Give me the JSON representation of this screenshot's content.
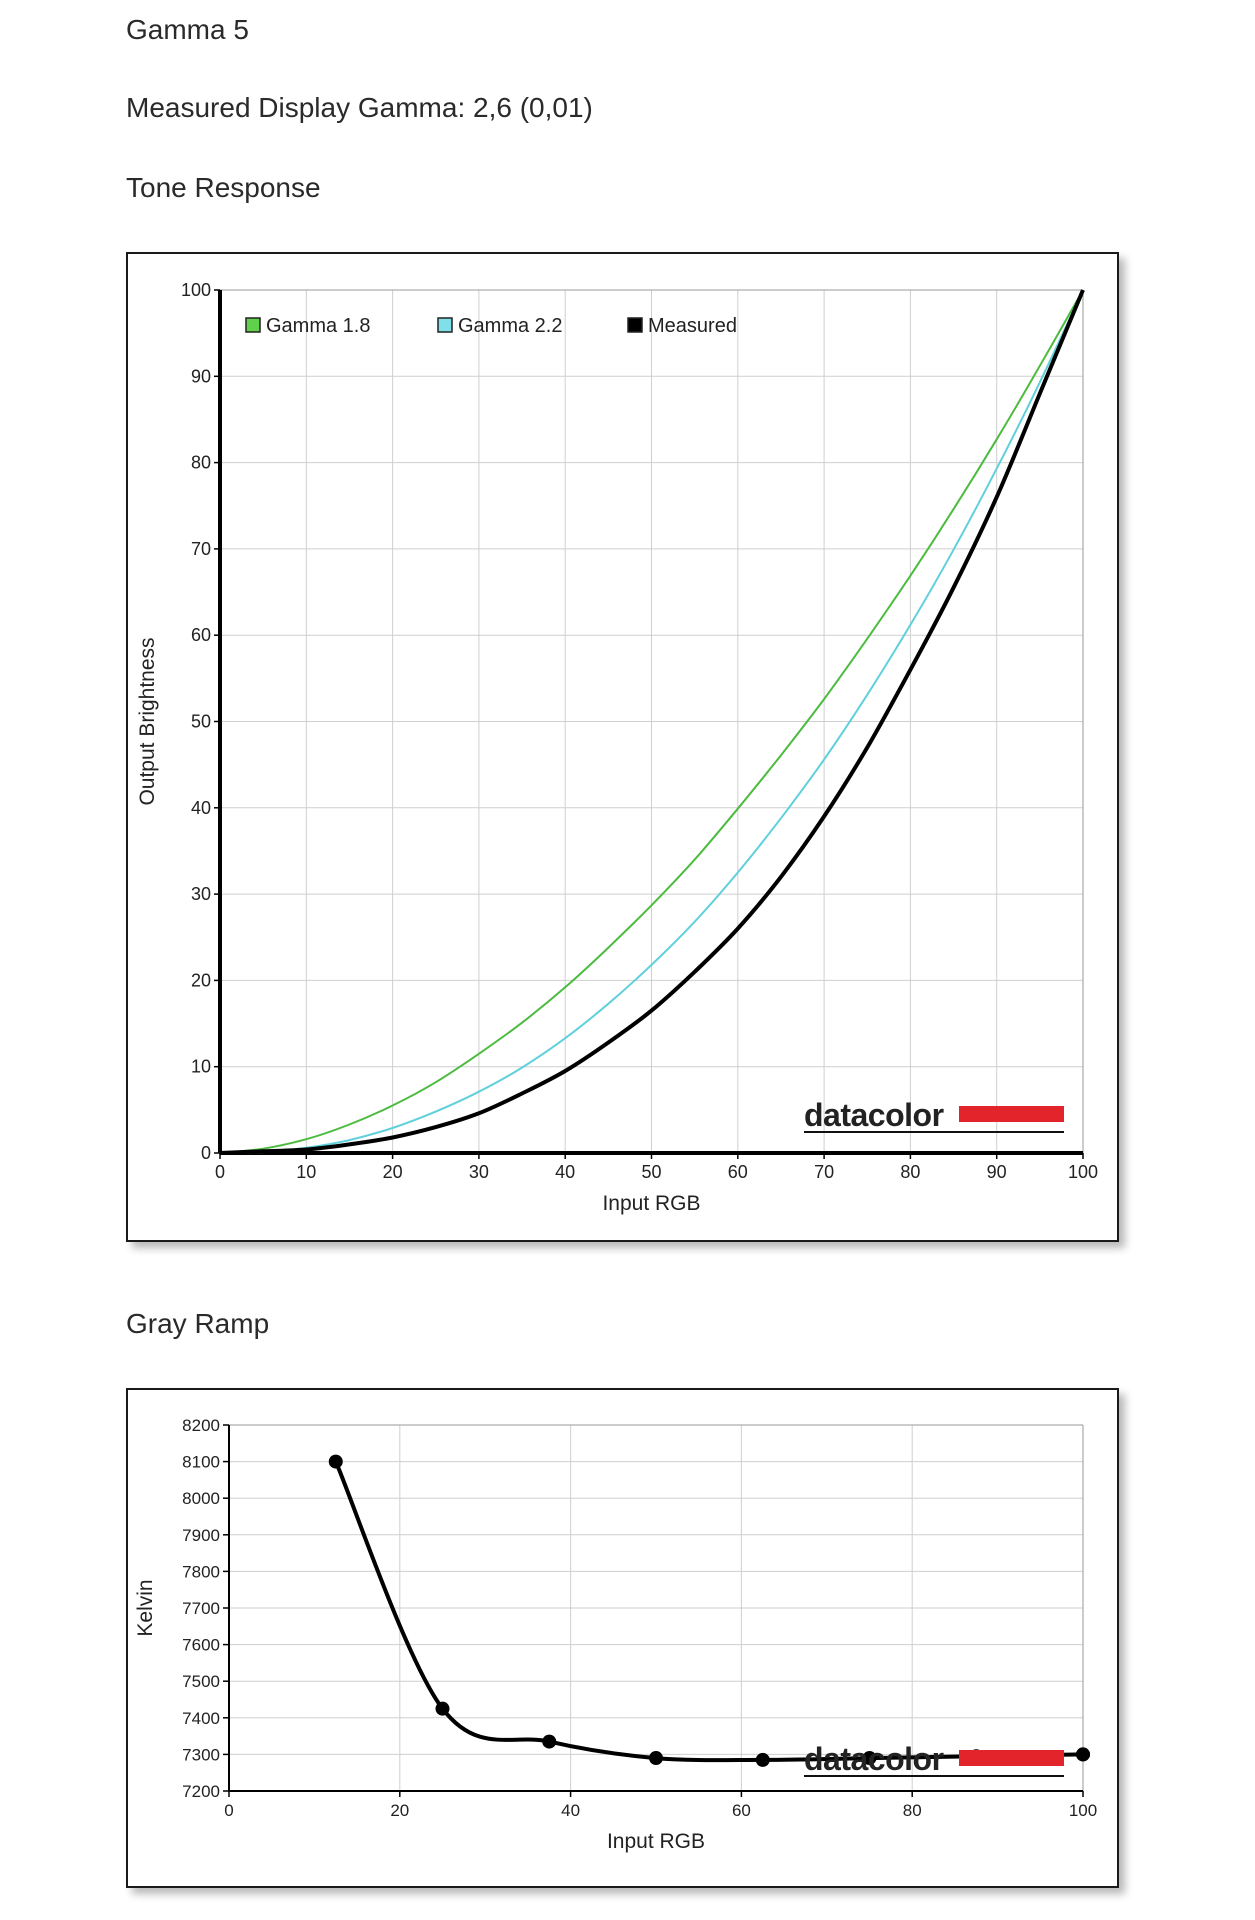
{
  "page": {
    "title": "Gamma 5",
    "measured_gamma": "Measured Display Gamma: 2,6 (0,01)",
    "section_tone": "Tone Response",
    "section_gray": "Gray Ramp",
    "brand": "datacolor",
    "brand_color": "#e3242b"
  },
  "chart_data": [
    {
      "type": "line",
      "title": "Tone Response",
      "xlabel": "Input RGB",
      "ylabel": "Output Brightness",
      "xlim": [
        0,
        100
      ],
      "ylim": [
        0,
        100
      ],
      "xticks": [
        0,
        10,
        20,
        30,
        40,
        50,
        60,
        70,
        80,
        90,
        100
      ],
      "yticks": [
        0,
        10,
        20,
        30,
        40,
        50,
        60,
        70,
        80,
        90,
        100
      ],
      "grid": true,
      "legend_position": "top-left",
      "series": [
        {
          "name": "Gamma 1.8",
          "color": "#4cbb3f",
          "legend_fill": "#5fd14a",
          "x": [
            0,
            5,
            10,
            15,
            20,
            25,
            30,
            35,
            40,
            45,
            50,
            55,
            60,
            65,
            70,
            75,
            80,
            85,
            90,
            95,
            100
          ],
          "y": [
            0,
            0.5,
            1.6,
            3.3,
            5.5,
            8.2,
            11.5,
            15.1,
            19.2,
            23.8,
            28.7,
            34.0,
            39.9,
            46.1,
            52.6,
            59.6,
            66.9,
            74.6,
            82.7,
            91.2,
            100
          ]
        },
        {
          "name": "Gamma 2.2",
          "color": "#5fd0dc",
          "legend_fill": "#7fe0ea",
          "x": [
            0,
            5,
            10,
            15,
            20,
            25,
            30,
            35,
            40,
            45,
            50,
            55,
            60,
            65,
            70,
            75,
            80,
            85,
            90,
            95,
            100
          ],
          "y": [
            0,
            0.1,
            0.6,
            1.5,
            2.9,
            4.8,
            7.1,
            9.9,
            13.3,
            17.3,
            21.8,
            26.8,
            32.5,
            38.8,
            45.6,
            53.1,
            61.2,
            69.9,
            79.3,
            89.3,
            100
          ]
        },
        {
          "name": "Measured",
          "color": "#000000",
          "legend_fill": "#000000",
          "x": [
            0,
            5,
            10,
            15,
            20,
            25,
            30,
            35,
            40,
            45,
            50,
            55,
            60,
            65,
            70,
            75,
            80,
            85,
            90,
            95,
            100
          ],
          "y": [
            0,
            0.2,
            0.4,
            1.0,
            1.8,
            3.0,
            4.6,
            6.9,
            9.5,
            12.8,
            16.5,
            21.0,
            26.0,
            32.0,
            39.0,
            47.0,
            56.0,
            65.5,
            76.0,
            88.0,
            100
          ]
        }
      ]
    },
    {
      "type": "line",
      "title": "Gray Ramp",
      "xlabel": "Input RGB",
      "ylabel": "Kelvin",
      "xlim": [
        0,
        100
      ],
      "ylim": [
        7200,
        8200
      ],
      "xticks": [
        0,
        20,
        40,
        60,
        80,
        100
      ],
      "yticks": [
        7200,
        7300,
        7400,
        7500,
        7600,
        7700,
        7800,
        7900,
        8000,
        8100,
        8200
      ],
      "grid": true,
      "series": [
        {
          "color": "#000000",
          "x": [
            12.5,
            25,
            37.5,
            50,
            62.5,
            75,
            87.5,
            100
          ],
          "y": [
            8100,
            7425,
            7335,
            7290,
            7285,
            7290,
            7295,
            7300
          ]
        }
      ]
    }
  ]
}
